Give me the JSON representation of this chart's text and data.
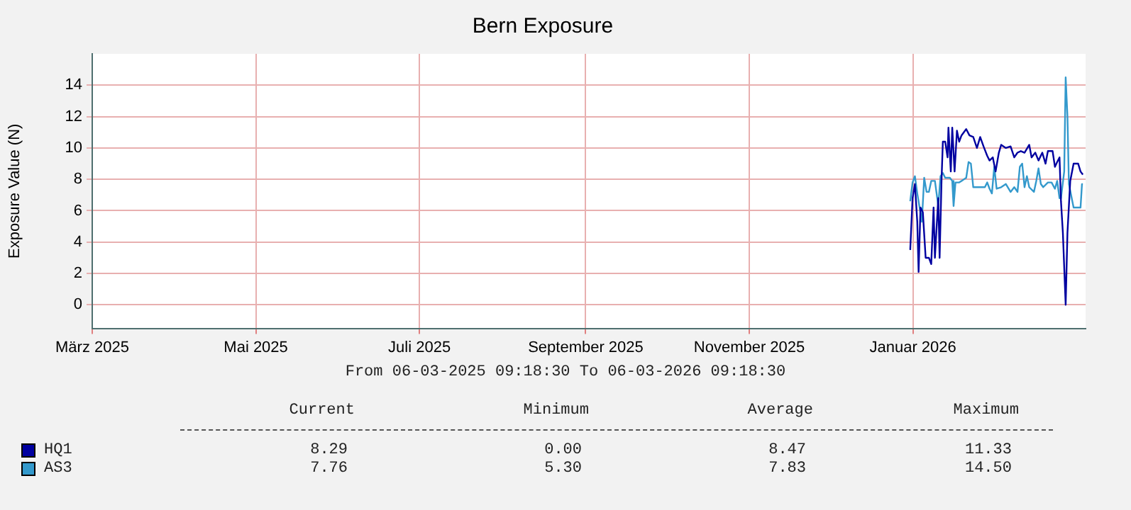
{
  "chart_data": {
    "type": "line",
    "title": "Bern Exposure",
    "ylabel": "Exposure Value (N)",
    "xlim": [
      "2025-03-01",
      "2026-03-06T09:18"
    ],
    "xticks": [
      {
        "value": "2025-03-01",
        "label": "März 2025"
      },
      {
        "value": "2025-05-01",
        "label": "Mai 2025"
      },
      {
        "value": "2025-07-01",
        "label": "Juli 2025"
      },
      {
        "value": "2025-09-01",
        "label": "September 2025"
      },
      {
        "value": "2025-11-01",
        "label": "November 2025"
      },
      {
        "value": "2026-01-01",
        "label": "Januar 2026"
      }
    ],
    "ylim": [
      -1.5,
      16
    ],
    "yticks": [
      0,
      2,
      4,
      6,
      8,
      10,
      12,
      14
    ],
    "grid": true,
    "legend": "bottom left",
    "marker": "none",
    "line_style": "solid",
    "series": [
      {
        "name": "HQ1",
        "color": "#0000a0",
        "x": [
          "2025-12-31T00:00",
          "2025-12-31T21:00",
          "2026-01-01T18:00",
          "2026-01-02T15:00",
          "2026-01-03T03:00",
          "2026-01-03T20:00",
          "2026-01-04T17:00",
          "2026-01-05T18:00",
          "2026-01-06T23:00",
          "2026-01-07T20:00",
          "2026-01-08T17:00",
          "2026-01-09T05:00",
          "2026-01-10T11:00",
          "2026-01-10T23:00",
          "2026-01-11T16:00",
          "2026-01-12T04:00",
          "2026-01-13T01:00",
          "2026-01-13T22:00",
          "2026-01-14T06:00",
          "2026-01-15T03:00",
          "2026-01-15T16:00",
          "2026-01-16T13:00",
          "2026-01-17T10:00",
          "2026-01-18T06:00",
          "2026-01-19T03:00",
          "2026-01-20T21:00",
          "2026-01-22T02:00",
          "2026-01-23T12:00",
          "2026-01-24T21:00",
          "2026-01-26T02:00",
          "2026-01-27T08:00",
          "2026-01-28T17:00",
          "2026-01-29T14:00",
          "2026-01-30T19:00",
          "2026-01-31T20:00",
          "2026-02-02T01:00",
          "2026-02-02T22:00",
          "2026-02-04T16:00",
          "2026-02-06T10:00",
          "2026-02-07T19:00",
          "2026-02-09T00:00",
          "2026-02-10T06:00",
          "2026-02-11T15:00",
          "2026-02-13T09:00",
          "2026-02-14T06:00",
          "2026-02-15T15:00",
          "2026-02-16T20:00",
          "2026-02-18T06:00",
          "2026-02-19T11:00",
          "2026-02-20T08:00",
          "2026-02-22T02:00",
          "2026-02-22T23:00",
          "2026-02-23T19:00",
          "2026-02-24T16:00",
          "2026-02-25T05:00",
          "2026-02-25T22:00",
          "2026-02-26T23:00",
          "2026-02-27T15:00",
          "2026-02-28T16:00",
          "2026-03-01T22:00",
          "2026-03-03T15:00",
          "2026-03-04T12:00",
          "2026-03-05T09:00"
        ],
        "values": [
          3.5,
          6.8,
          7.7,
          5.3,
          2.1,
          6.2,
          5.9,
          3.0,
          3.0,
          2.6,
          6.2,
          3.0,
          6.8,
          3.0,
          7.9,
          10.4,
          10.4,
          9.4,
          11.3,
          8.5,
          11.3,
          8.5,
          11.1,
          10.4,
          10.8,
          11.2,
          10.8,
          10.7,
          10.0,
          10.7,
          10.1,
          9.5,
          9.2,
          9.4,
          8.5,
          9.7,
          10.2,
          10.0,
          10.1,
          9.4,
          9.7,
          9.8,
          9.7,
          10.2,
          9.4,
          9.7,
          9.2,
          9.7,
          9.0,
          9.8,
          9.8,
          8.8,
          9.1,
          9.4,
          6.6,
          4.6,
          0.0,
          4.6,
          7.9,
          9.0,
          9.0,
          8.5,
          8.3
        ]
      },
      {
        "name": "AS3",
        "color": "#3399cc",
        "x": [
          "2025-12-31T00:00",
          "2025-12-31T21:00",
          "2026-01-01T18:00",
          "2026-01-02T15:00",
          "2026-01-03T12:00",
          "2026-01-04T08:00",
          "2026-01-05T05:00",
          "2026-01-06T02:00",
          "2026-01-06T23:00",
          "2026-01-07T20:00",
          "2026-01-09T05:00",
          "2026-01-10T11:00",
          "2026-01-11T07:00",
          "2026-01-12T04:00",
          "2026-01-13T01:00",
          "2026-01-14T19:00",
          "2026-01-15T16:00",
          "2026-01-16T04:00",
          "2026-01-16T21:00",
          "2026-01-18T06:00",
          "2026-01-19T03:00",
          "2026-01-20T21:00",
          "2026-01-21T18:00",
          "2026-01-22T15:00",
          "2026-01-23T12:00",
          "2026-01-25T06:00",
          "2026-01-27T20:00",
          "2026-01-28T17:00",
          "2026-01-29T14:00",
          "2026-01-30T11:00",
          "2026-01-31T08:00",
          "2026-02-01T05:00",
          "2026-02-02T22:00",
          "2026-02-04T16:00",
          "2026-02-06T10:00",
          "2026-02-07T19:00",
          "2026-02-09T00:00",
          "2026-02-09T21:00",
          "2026-02-10T18:00",
          "2026-02-11T15:00",
          "2026-02-12T12:00",
          "2026-02-13T09:00",
          "2026-02-15T03:00",
          "2026-02-16T00:00",
          "2026-02-16T20:00",
          "2026-02-17T17:00",
          "2026-02-18T14:00",
          "2026-02-20T08:00",
          "2026-02-21T17:00",
          "2026-02-22T23:00",
          "2026-02-23T19:00",
          "2026-02-24T16:00",
          "2026-02-25T05:00",
          "2026-02-26T10:00",
          "2026-02-26T23:00",
          "2026-02-27T15:00",
          "2026-02-28T04:00",
          "2026-03-01T22:00",
          "2026-03-04T12:00",
          "2026-03-05T01:00",
          "2026-03-05T09:00"
        ],
        "values": [
          6.6,
          7.8,
          8.2,
          7.1,
          6.2,
          5.3,
          8.1,
          7.2,
          7.2,
          7.9,
          7.9,
          6.3,
          8.2,
          8.4,
          8.1,
          8.1,
          7.9,
          6.3,
          7.8,
          7.8,
          7.9,
          8.1,
          9.1,
          9.0,
          7.5,
          7.5,
          7.5,
          7.8,
          7.4,
          7.1,
          8.8,
          7.4,
          7.5,
          7.7,
          7.2,
          7.5,
          7.2,
          8.8,
          9.0,
          7.5,
          8.2,
          7.5,
          7.2,
          7.9,
          8.7,
          7.7,
          7.5,
          7.8,
          7.8,
          7.4,
          7.9,
          6.8,
          6.8,
          8.5,
          14.5,
          12.0,
          7.7,
          6.2,
          6.2,
          7.7,
          7.7
        ]
      }
    ],
    "annotations": [
      "From 06-03-2025 09:18:30 To 06-03-2026 09:18:30",
      "Current",
      "Minimum",
      "Average",
      "Maximum",
      "8.29",
      "0.00",
      "8.47",
      "11.33",
      "7.76",
      "5.30",
      "7.83",
      "14.50"
    ]
  }
}
